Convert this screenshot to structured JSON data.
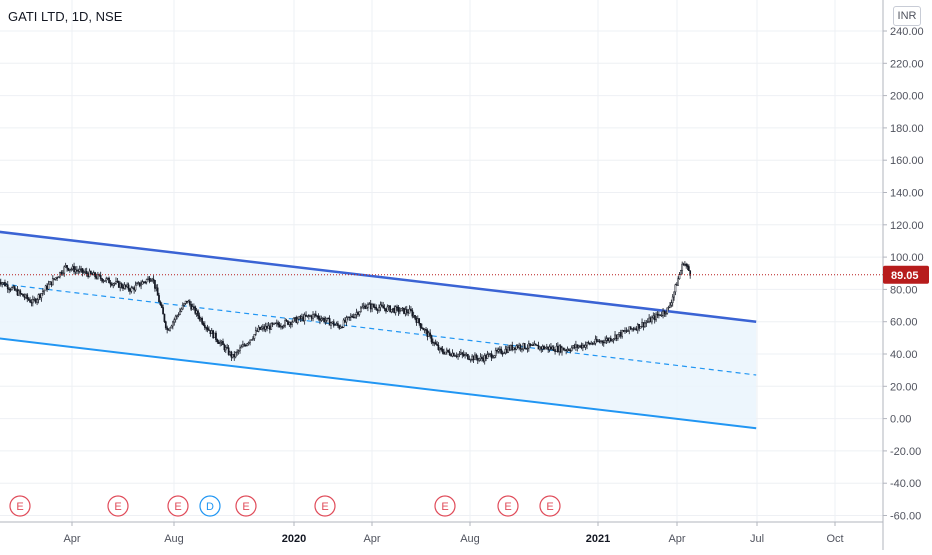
{
  "header": {
    "symbol": "GATI LTD, 1D, NSE",
    "currency": "INR"
  },
  "chart_data": {
    "type": "candlestick",
    "title": "GATI LTD, 1D, NSE",
    "ylim": [
      -60,
      240
    ],
    "y_ticks": [
      "240.00",
      "220.00",
      "200.00",
      "180.00",
      "160.00",
      "140.00",
      "120.00",
      "100.00",
      "80.00",
      "60.00",
      "40.00",
      "20.00",
      "0.00",
      "-20.00",
      "-40.00",
      "-60.00"
    ],
    "x_ticks": [
      "Apr",
      "Aug",
      "2020",
      "Apr",
      "Aug",
      "2021",
      "Apr",
      "Jul",
      "Oct"
    ],
    "grid": true,
    "last_price": "89.05",
    "last_price_value": 89.05,
    "price_path": [
      {
        "date": "2019-01-01",
        "close": 86
      },
      {
        "date": "2019-02-05",
        "close": 72
      },
      {
        "date": "2019-03-10",
        "close": 94
      },
      {
        "date": "2019-04-10",
        "close": 88
      },
      {
        "date": "2019-05-15",
        "close": 80
      },
      {
        "date": "2019-06-05",
        "close": 88
      },
      {
        "date": "2019-06-20",
        "close": 55
      },
      {
        "date": "2019-07-10",
        "close": 73
      },
      {
        "date": "2019-08-01",
        "close": 55
      },
      {
        "date": "2019-08-25",
        "close": 38
      },
      {
        "date": "2019-09-20",
        "close": 55
      },
      {
        "date": "2019-11-15",
        "close": 64
      },
      {
        "date": "2019-12-10",
        "close": 57
      },
      {
        "date": "2020-01-05",
        "close": 70
      },
      {
        "date": "2020-02-20",
        "close": 66
      },
      {
        "date": "2020-03-20",
        "close": 42
      },
      {
        "date": "2020-04-30",
        "close": 37
      },
      {
        "date": "2020-06-05",
        "close": 45
      },
      {
        "date": "2020-07-25",
        "close": 43
      },
      {
        "date": "2020-09-05",
        "close": 49
      },
      {
        "date": "2020-10-15",
        "close": 60
      },
      {
        "date": "2020-11-05",
        "close": 68
      },
      {
        "date": "2020-11-20",
        "close": 97
      },
      {
        "date": "2020-11-28",
        "close": 89
      }
    ],
    "channel": {
      "upper_line": [
        {
          "date": "2018-12-01",
          "value": 118
        },
        {
          "date": "2021-02-01",
          "value": 60
        }
      ],
      "middle_line": [
        {
          "date": "2018-12-01",
          "value": 86
        },
        {
          "date": "2021-02-01",
          "value": 27
        }
      ],
      "lower_line": [
        {
          "date": "2018-12-01",
          "value": 52
        },
        {
          "date": "2021-02-01",
          "value": -6
        }
      ]
    },
    "events": [
      {
        "label": "E",
        "type": "earnings"
      },
      {
        "label": "E",
        "type": "earnings"
      },
      {
        "label": "E",
        "type": "earnings"
      },
      {
        "label": "D",
        "type": "dividend"
      },
      {
        "label": "E",
        "type": "earnings"
      },
      {
        "label": "E",
        "type": "earnings"
      },
      {
        "label": "E",
        "type": "earnings"
      },
      {
        "label": "E",
        "type": "earnings"
      },
      {
        "label": "E",
        "type": "earnings"
      }
    ]
  },
  "colors": {
    "trend_upper": "#3a63d4",
    "trend_lower": "#2196f3",
    "channel_fill": "#eaf4fd",
    "candle": "#131722",
    "price_tag": "#b71c1c",
    "earnings": "#e04c5a",
    "dividend": "#2196f3",
    "grid": "#eef0f4",
    "axis_text": "#50535e"
  }
}
